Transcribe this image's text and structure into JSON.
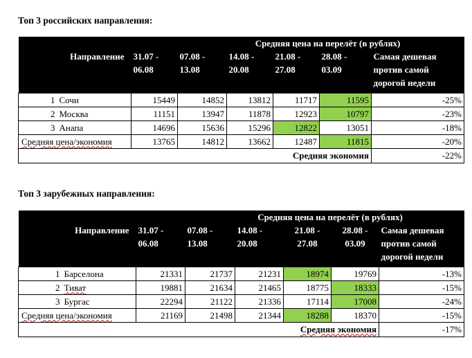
{
  "russia": {
    "title": "Топ 3 российских направления:",
    "header": {
      "super": "Средняя цена на перелёт (в рублях)",
      "direction": "Направление",
      "weeks": [
        "31.07 - 06.08",
        "07.08 - 13.08",
        "14.08 - 20.08",
        "21.08 - 27.08",
        "28.08 - 03.09"
      ],
      "compare": "Самая дешевая против самой дорогой недели"
    },
    "rows": [
      {
        "idx": "1",
        "name": "Сочи",
        "values": [
          "15449",
          "14852",
          "13812",
          "11717",
          "11595"
        ],
        "pct": "-25%",
        "highlight": 4
      },
      {
        "idx": "2",
        "name": "Москва",
        "values": [
          "11151",
          "13947",
          "11878",
          "12923",
          "10797"
        ],
        "pct": "-23%",
        "highlight": 4
      },
      {
        "idx": "3",
        "name": "Анапа",
        "values": [
          "14696",
          "15636",
          "15296",
          "12822",
          "13051"
        ],
        "pct": "-18%",
        "highlight": 3
      }
    ],
    "average": {
      "label": "Средняя цена/экономия",
      "values": [
        "13765",
        "14812",
        "13662",
        "12487",
        "11815"
      ],
      "pct": "-20%",
      "highlight": 4
    },
    "footer": {
      "label": "Средняя экономия",
      "value": "-22%"
    }
  },
  "abroad": {
    "title": "Топ 3 зарубежных направления:",
    "header": {
      "super": "Средняя цена на перелёт (в рублях)",
      "direction": "Направление",
      "weeks": [
        "31.07 - 06.08",
        "07.08 - 13.08",
        "14.08 - 20.08",
        "21.08 - 27.08",
        "28.08 - 03.09"
      ],
      "compare": "Самая дешевая против самой дорогой недели"
    },
    "rows": [
      {
        "idx": "1",
        "name": "Барселона",
        "values": [
          "21331",
          "21737",
          "21231",
          "18974",
          "19769"
        ],
        "pct": "-13%",
        "highlight": 3
      },
      {
        "idx": "2",
        "name": "Тиват",
        "values": [
          "19881",
          "21634",
          "21465",
          "18775",
          "18333"
        ],
        "pct": "-15%",
        "highlight": 4
      },
      {
        "idx": "3",
        "name": "Бургас",
        "values": [
          "22294",
          "21122",
          "21336",
          "17114",
          "17008"
        ],
        "pct": "-24%",
        "highlight": 4
      }
    ],
    "average": {
      "label": "Средняя цена/экономия",
      "values": [
        "21169",
        "21498",
        "21344",
        "18288",
        "18370"
      ],
      "pct": "-15%",
      "highlight": 3
    },
    "footer": {
      "label": "Средняя экономия",
      "value": "-17%"
    }
  }
}
